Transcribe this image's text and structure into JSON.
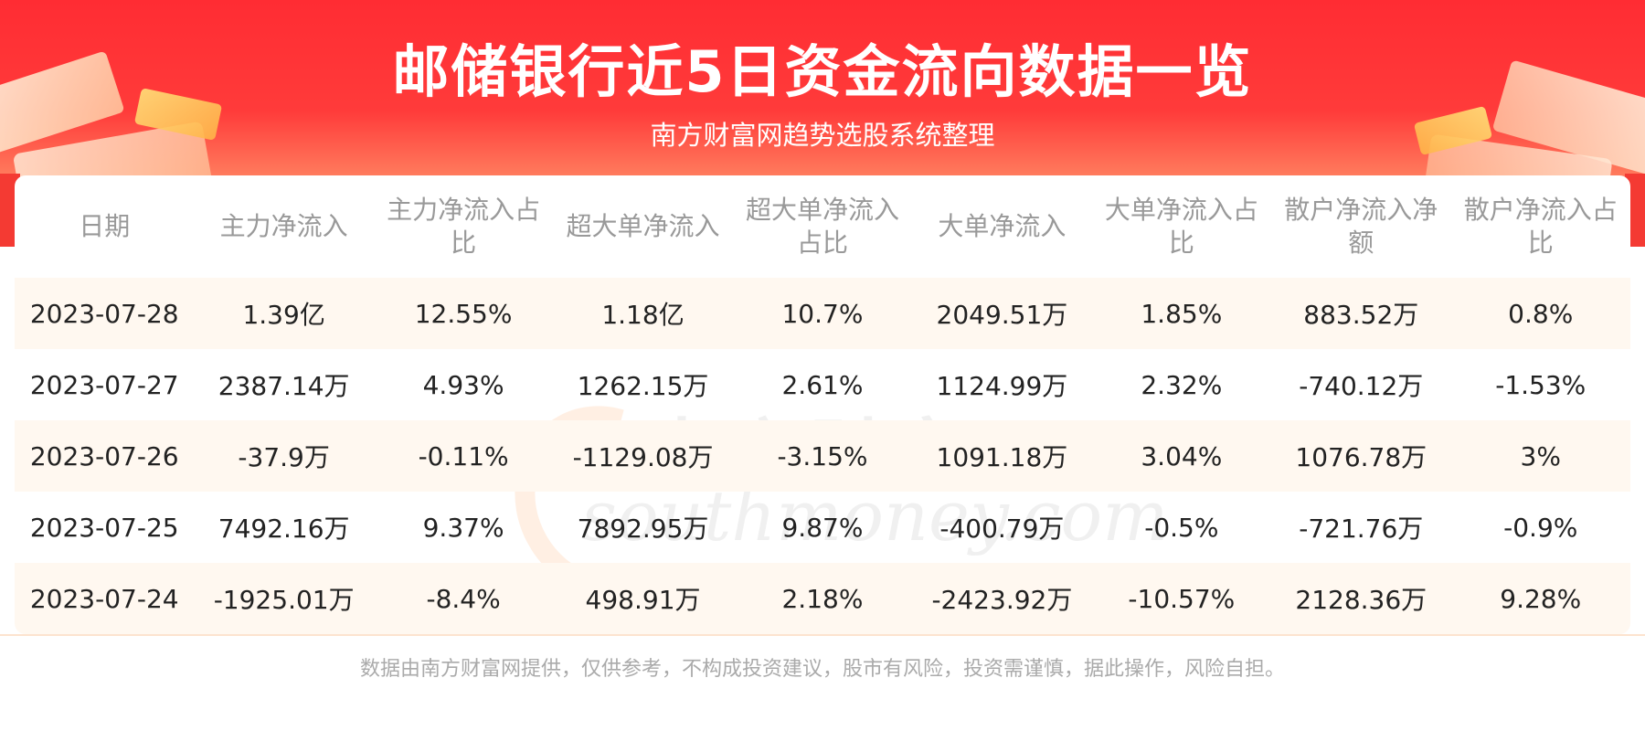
{
  "header": {
    "title": "邮储银行近5日资金流向数据一览",
    "subtitle": "南方财富网趋势选股系统整理"
  },
  "watermark": {
    "cn": "南方财富网",
    "en": "southmoney.com"
  },
  "table": {
    "columns": [
      "日期",
      "主力净流入",
      "主力净流入占比",
      "超大单净流入",
      "超大单净流入占比",
      "大单净流入",
      "大单净流入占比",
      "散户净流入净额",
      "散户净流入占比"
    ],
    "rows": [
      [
        "2023-07-28",
        "1.39亿",
        "12.55%",
        "1.18亿",
        "10.7%",
        "2049.51万",
        "1.85%",
        "883.52万",
        "0.8%"
      ],
      [
        "2023-07-27",
        "2387.14万",
        "4.93%",
        "1262.15万",
        "2.61%",
        "1124.99万",
        "2.32%",
        "-740.12万",
        "-1.53%"
      ],
      [
        "2023-07-26",
        "-37.9万",
        "-0.11%",
        "-1129.08万",
        "-3.15%",
        "1091.18万",
        "3.04%",
        "1076.78万",
        "3%"
      ],
      [
        "2023-07-25",
        "7492.16万",
        "9.37%",
        "7892.95万",
        "9.87%",
        "-400.79万",
        "-0.5%",
        "-721.76万",
        "-0.9%"
      ],
      [
        "2023-07-24",
        "-1925.01万",
        "-8.4%",
        "498.91万",
        "2.18%",
        "-2423.92万",
        "-10.57%",
        "2128.36万",
        "9.28%"
      ]
    ]
  },
  "footer": {
    "disclaimer": "数据由南方财富网提供，仅供参考，不构成投资建议，股市有风险，投资需谨慎，据此操作，风险自担。"
  },
  "colors": {
    "banner_red": "#ff2c33",
    "row_shade": "#fff8f0",
    "header_text": "#999999",
    "cell_text": "#222222"
  }
}
